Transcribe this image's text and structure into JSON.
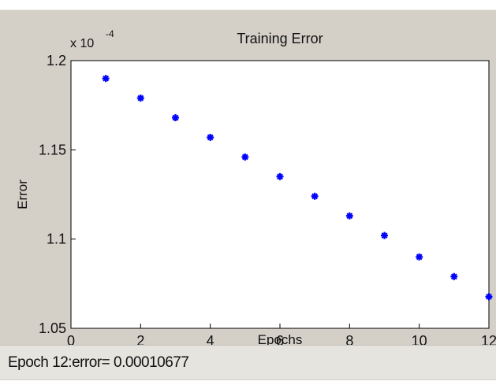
{
  "chart_data": {
    "type": "scatter",
    "title": "Training Error",
    "xlabel": "Epochs",
    "ylabel": "Error",
    "y_multiplier": "x 10",
    "y_exponent": "-4",
    "xlim": [
      0,
      12
    ],
    "ylim": [
      1.05,
      1.2
    ],
    "xticks": [
      "0",
      "2",
      "4",
      "6",
      "8",
      "10",
      "12"
    ],
    "yticks": [
      "1.05",
      "1.1",
      "1.15",
      "1.2"
    ],
    "grid": false,
    "marker": "asterisk",
    "series": [
      {
        "color": "#0000ff",
        "x": [
          1,
          2,
          3,
          4,
          5,
          6,
          7,
          8,
          9,
          10,
          11,
          12
        ],
        "y": [
          1.19,
          1.179,
          1.168,
          1.157,
          1.146,
          1.135,
          1.124,
          1.113,
          1.102,
          1.09,
          1.079,
          1.0677
        ]
      }
    ]
  },
  "status": {
    "text": "Epoch 12:error= 0.00010677"
  }
}
